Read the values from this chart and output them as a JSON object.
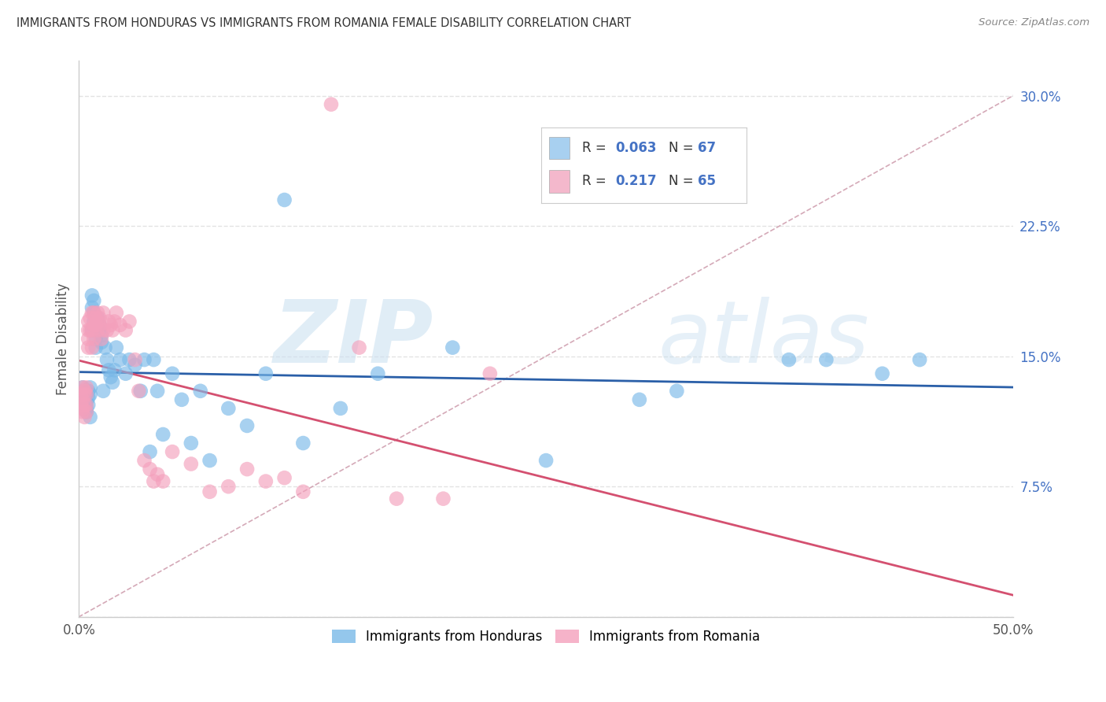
{
  "title": "IMMIGRANTS FROM HONDURAS VS IMMIGRANTS FROM ROMANIA FEMALE DISABILITY CORRELATION CHART",
  "source": "Source: ZipAtlas.com",
  "ylabel": "Female Disability",
  "xlim": [
    0.0,
    0.5
  ],
  "ylim": [
    0.0,
    0.32
  ],
  "xticks": [
    0.0,
    0.1,
    0.2,
    0.3,
    0.4,
    0.5
  ],
  "yticks": [
    0.0,
    0.075,
    0.15,
    0.225,
    0.3
  ],
  "background_color": "#ffffff",
  "grid_color": "#dddddd",
  "blue_color": "#7ab9e8",
  "pink_color": "#f4a0bc",
  "trend_blue": "#2a5fa8",
  "trend_pink": "#d45070",
  "trend_dashed_color": "#d0a0b0",
  "legend_blue": "#a8d0f0",
  "legend_pink": "#f4b8cc",
  "watermark_zip": "ZIP",
  "watermark_atlas": "atlas",
  "honduras_x": [
    0.002,
    0.002,
    0.003,
    0.003,
    0.003,
    0.004,
    0.004,
    0.004,
    0.004,
    0.005,
    0.005,
    0.005,
    0.006,
    0.006,
    0.006,
    0.007,
    0.007,
    0.007,
    0.008,
    0.008,
    0.008,
    0.009,
    0.009,
    0.01,
    0.01,
    0.011,
    0.011,
    0.012,
    0.012,
    0.013,
    0.014,
    0.015,
    0.016,
    0.017,
    0.018,
    0.019,
    0.02,
    0.022,
    0.025,
    0.027,
    0.03,
    0.033,
    0.035,
    0.038,
    0.04,
    0.042,
    0.045,
    0.05,
    0.055,
    0.06,
    0.065,
    0.07,
    0.08,
    0.09,
    0.1,
    0.11,
    0.12,
    0.14,
    0.16,
    0.2,
    0.25,
    0.3,
    0.32,
    0.38,
    0.4,
    0.43,
    0.45
  ],
  "honduras_y": [
    0.132,
    0.128,
    0.125,
    0.122,
    0.13,
    0.118,
    0.124,
    0.128,
    0.12,
    0.126,
    0.13,
    0.122,
    0.128,
    0.115,
    0.132,
    0.185,
    0.178,
    0.165,
    0.175,
    0.182,
    0.17,
    0.16,
    0.155,
    0.168,
    0.172,
    0.165,
    0.168,
    0.158,
    0.162,
    0.13,
    0.155,
    0.148,
    0.142,
    0.138,
    0.135,
    0.142,
    0.155,
    0.148,
    0.14,
    0.148,
    0.145,
    0.13,
    0.148,
    0.095,
    0.148,
    0.13,
    0.105,
    0.14,
    0.125,
    0.1,
    0.13,
    0.09,
    0.12,
    0.11,
    0.14,
    0.24,
    0.1,
    0.12,
    0.14,
    0.155,
    0.09,
    0.125,
    0.13,
    0.148,
    0.148,
    0.14,
    0.148
  ],
  "romania_x": [
    0.001,
    0.001,
    0.002,
    0.002,
    0.002,
    0.002,
    0.003,
    0.003,
    0.003,
    0.003,
    0.004,
    0.004,
    0.004,
    0.004,
    0.005,
    0.005,
    0.005,
    0.005,
    0.006,
    0.006,
    0.007,
    0.007,
    0.007,
    0.008,
    0.008,
    0.008,
    0.009,
    0.009,
    0.01,
    0.01,
    0.01,
    0.011,
    0.011,
    0.012,
    0.013,
    0.013,
    0.015,
    0.016,
    0.017,
    0.018,
    0.019,
    0.02,
    0.022,
    0.025,
    0.027,
    0.03,
    0.032,
    0.035,
    0.038,
    0.04,
    0.042,
    0.045,
    0.05,
    0.06,
    0.07,
    0.08,
    0.09,
    0.1,
    0.11,
    0.12,
    0.135,
    0.15,
    0.17,
    0.195,
    0.22
  ],
  "romania_y": [
    0.128,
    0.122,
    0.132,
    0.118,
    0.125,
    0.12,
    0.128,
    0.122,
    0.115,
    0.13,
    0.128,
    0.132,
    0.122,
    0.118,
    0.165,
    0.16,
    0.17,
    0.155,
    0.165,
    0.172,
    0.155,
    0.165,
    0.175,
    0.168,
    0.16,
    0.175,
    0.168,
    0.172,
    0.165,
    0.17,
    0.175,
    0.168,
    0.172,
    0.16,
    0.165,
    0.175,
    0.165,
    0.17,
    0.168,
    0.165,
    0.17,
    0.175,
    0.168,
    0.165,
    0.17,
    0.148,
    0.13,
    0.09,
    0.085,
    0.078,
    0.082,
    0.078,
    0.095,
    0.088,
    0.072,
    0.075,
    0.085,
    0.078,
    0.08,
    0.072,
    0.295,
    0.155,
    0.068,
    0.068,
    0.14
  ]
}
